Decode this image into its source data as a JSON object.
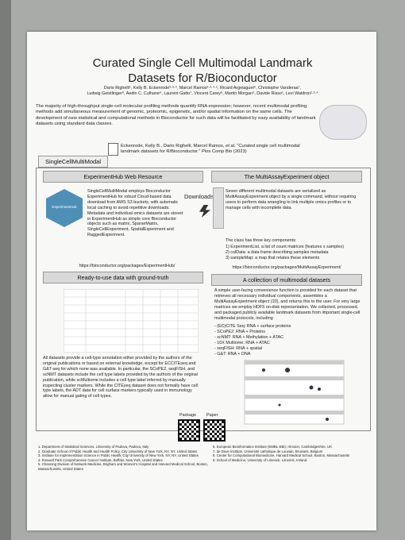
{
  "header": {
    "title_line1": "Curated Single Cell Multimodal Landmark",
    "title_line2": "Datasets for R/Bioconductor",
    "authors_line1": "Dario Righelli¹, Kelly B. Eckenrode²·³·⁴, Marcel Ramos²·³·⁴·⁵, Ricard Argelaguet⁶, Christophe Vanderaa⁷,",
    "authors_line2": "Ludwig Geistlinger⁸, Aedin C. Culhane⁹, Laurent Gatto⁷, Vincent Carey⁸, Martin Morgan⁵, Davide Risso¹, Levi Waldron²·³·⁴"
  },
  "abstract": "The majority of high-throughput single-cell molecular profiling methods quantify RNA expression; however, recent multimodal profiling methods add simultaneous measurement of genomic, proteomic, epigenetic, and/or spatial information on the same cells. The development of new statistical and computational methods in Bioconductor for such data will be facilitated by easy availability of landmark datasets using standard data classes.",
  "citation": "Eckenrode, Kelly B., Dario Righelli, Marcel Ramos, et al. \"Curated single cell multimodal landmark datasets for R/Bioconductor.\" Plos Comp Bio (2023)",
  "tab_label": "SingleCellMultiModal",
  "downloads_label": "Downloads",
  "sections": {
    "experimenthub": {
      "heading": "ExperimentHub Web Resource",
      "logo_label": "ExperimentHub",
      "text": "SingleCellMultiModal employs Bioconductor ExperimentHub for robust Cloud-based data download from AWS S3 buckets, with automatic local caching to avoid repetitive downloads. Metadata and individual omics datasets are stored in ExperimentHub as simple core Bioconductor objects such as matrix, SparseMatrix, SingleCellExperiment, SpatialExperiment and RaggedExperiment.",
      "url": "https://bioconductor.org/packages/ExperimentHub/"
    },
    "multiassay": {
      "heading": "The MultiAssayExperiment object",
      "text": "Seven different multimodal datasets are serialized as MultiAssayExperiment object by a single command, without requiring users to perform data wrangling to link multiple omics profiles or to manage cells with incomplete data.",
      "components_intro": "The class has three key components:",
      "components": [
        "1) ExperimentList, a list of count matrices (features x samples)",
        "2) colData: a data frame describing samples metadata",
        "3) sampleMap: a map that relates these elements"
      ],
      "url": "https://bioconductor.org/packages/MultiAssayExperiment/"
    },
    "ready": {
      "heading": "Ready-to-use data with ground-truth",
      "text": "All datasets provide a cell-type annotation either provided by the authors of the original publications or based on external knowledge, except for ECCITEseq and G&T-seq for which none was available. In particular, the SCoPE2, seqFISH, and scNMT datasets include the cell type labels provided by the authors of the original publication, while scMultiome includes a cell type label inferred by manually inspecting cluster markers. While the CITEseq dataset does not formally have cell type labels, the ADT data for cell surface markers typically used in immunology allow for manual gating of cell types.",
      "package_label": "Package",
      "paper_label": "Paper"
    },
    "collection": {
      "heading": "A collection of multimodal datasets",
      "text": "A simple user-facing convenience function is provided for each dataset that retrieves all necessary individual components, assembles a MultiAssayExperiment object (10), and returns this to the user. For very large matrices we employ HDF5 on-disk representation. We collected, processed, and packaged publicly available landmark datasets from important single-cell multimodal protocols, including",
      "protocols": [
        "- (EC)CITE Seq: RNA + surface proteins",
        "- SCoPE2: RNA + Proteins",
        "- scNMT: RNA + Methylation + ATAC",
        "- 10X Multiome: RNA + ATAC",
        "- seqFISH: RNA + spatial",
        "- G&T: RNA + DNA"
      ]
    }
  },
  "footnotes": {
    "left": [
      "1. Department of Statistical Sciences, University of Padova, Padova, Italy",
      "2. Graduate School of Public Health and Health Policy, City University of New York, NY, NY, United States",
      "3. Institute for Implementation Science in Public Health, City University of New York, NY, NY, United States",
      "4. Roswell Park Comprehensive Cancer Institute, Buffalo, New York, United States",
      "5. Channing Division of Network Medicine, Brigham and Women's Hospital and Harvard Medical School, Boston, Massachusetts, United States"
    ],
    "right": [
      "6. European Bioinformatics Institute (EMBL-EBI), Hinxton, Cambridgeshire, UK",
      "7. de Duve Institute, Université catholique de Louvain, Brussels, Belgium",
      "8. Center for Computational Biomedicine, Harvard Medical School, Boston, Massachusetts",
      "9. School of Medicine, University of Limerick, Limerick, Ireland"
    ]
  }
}
